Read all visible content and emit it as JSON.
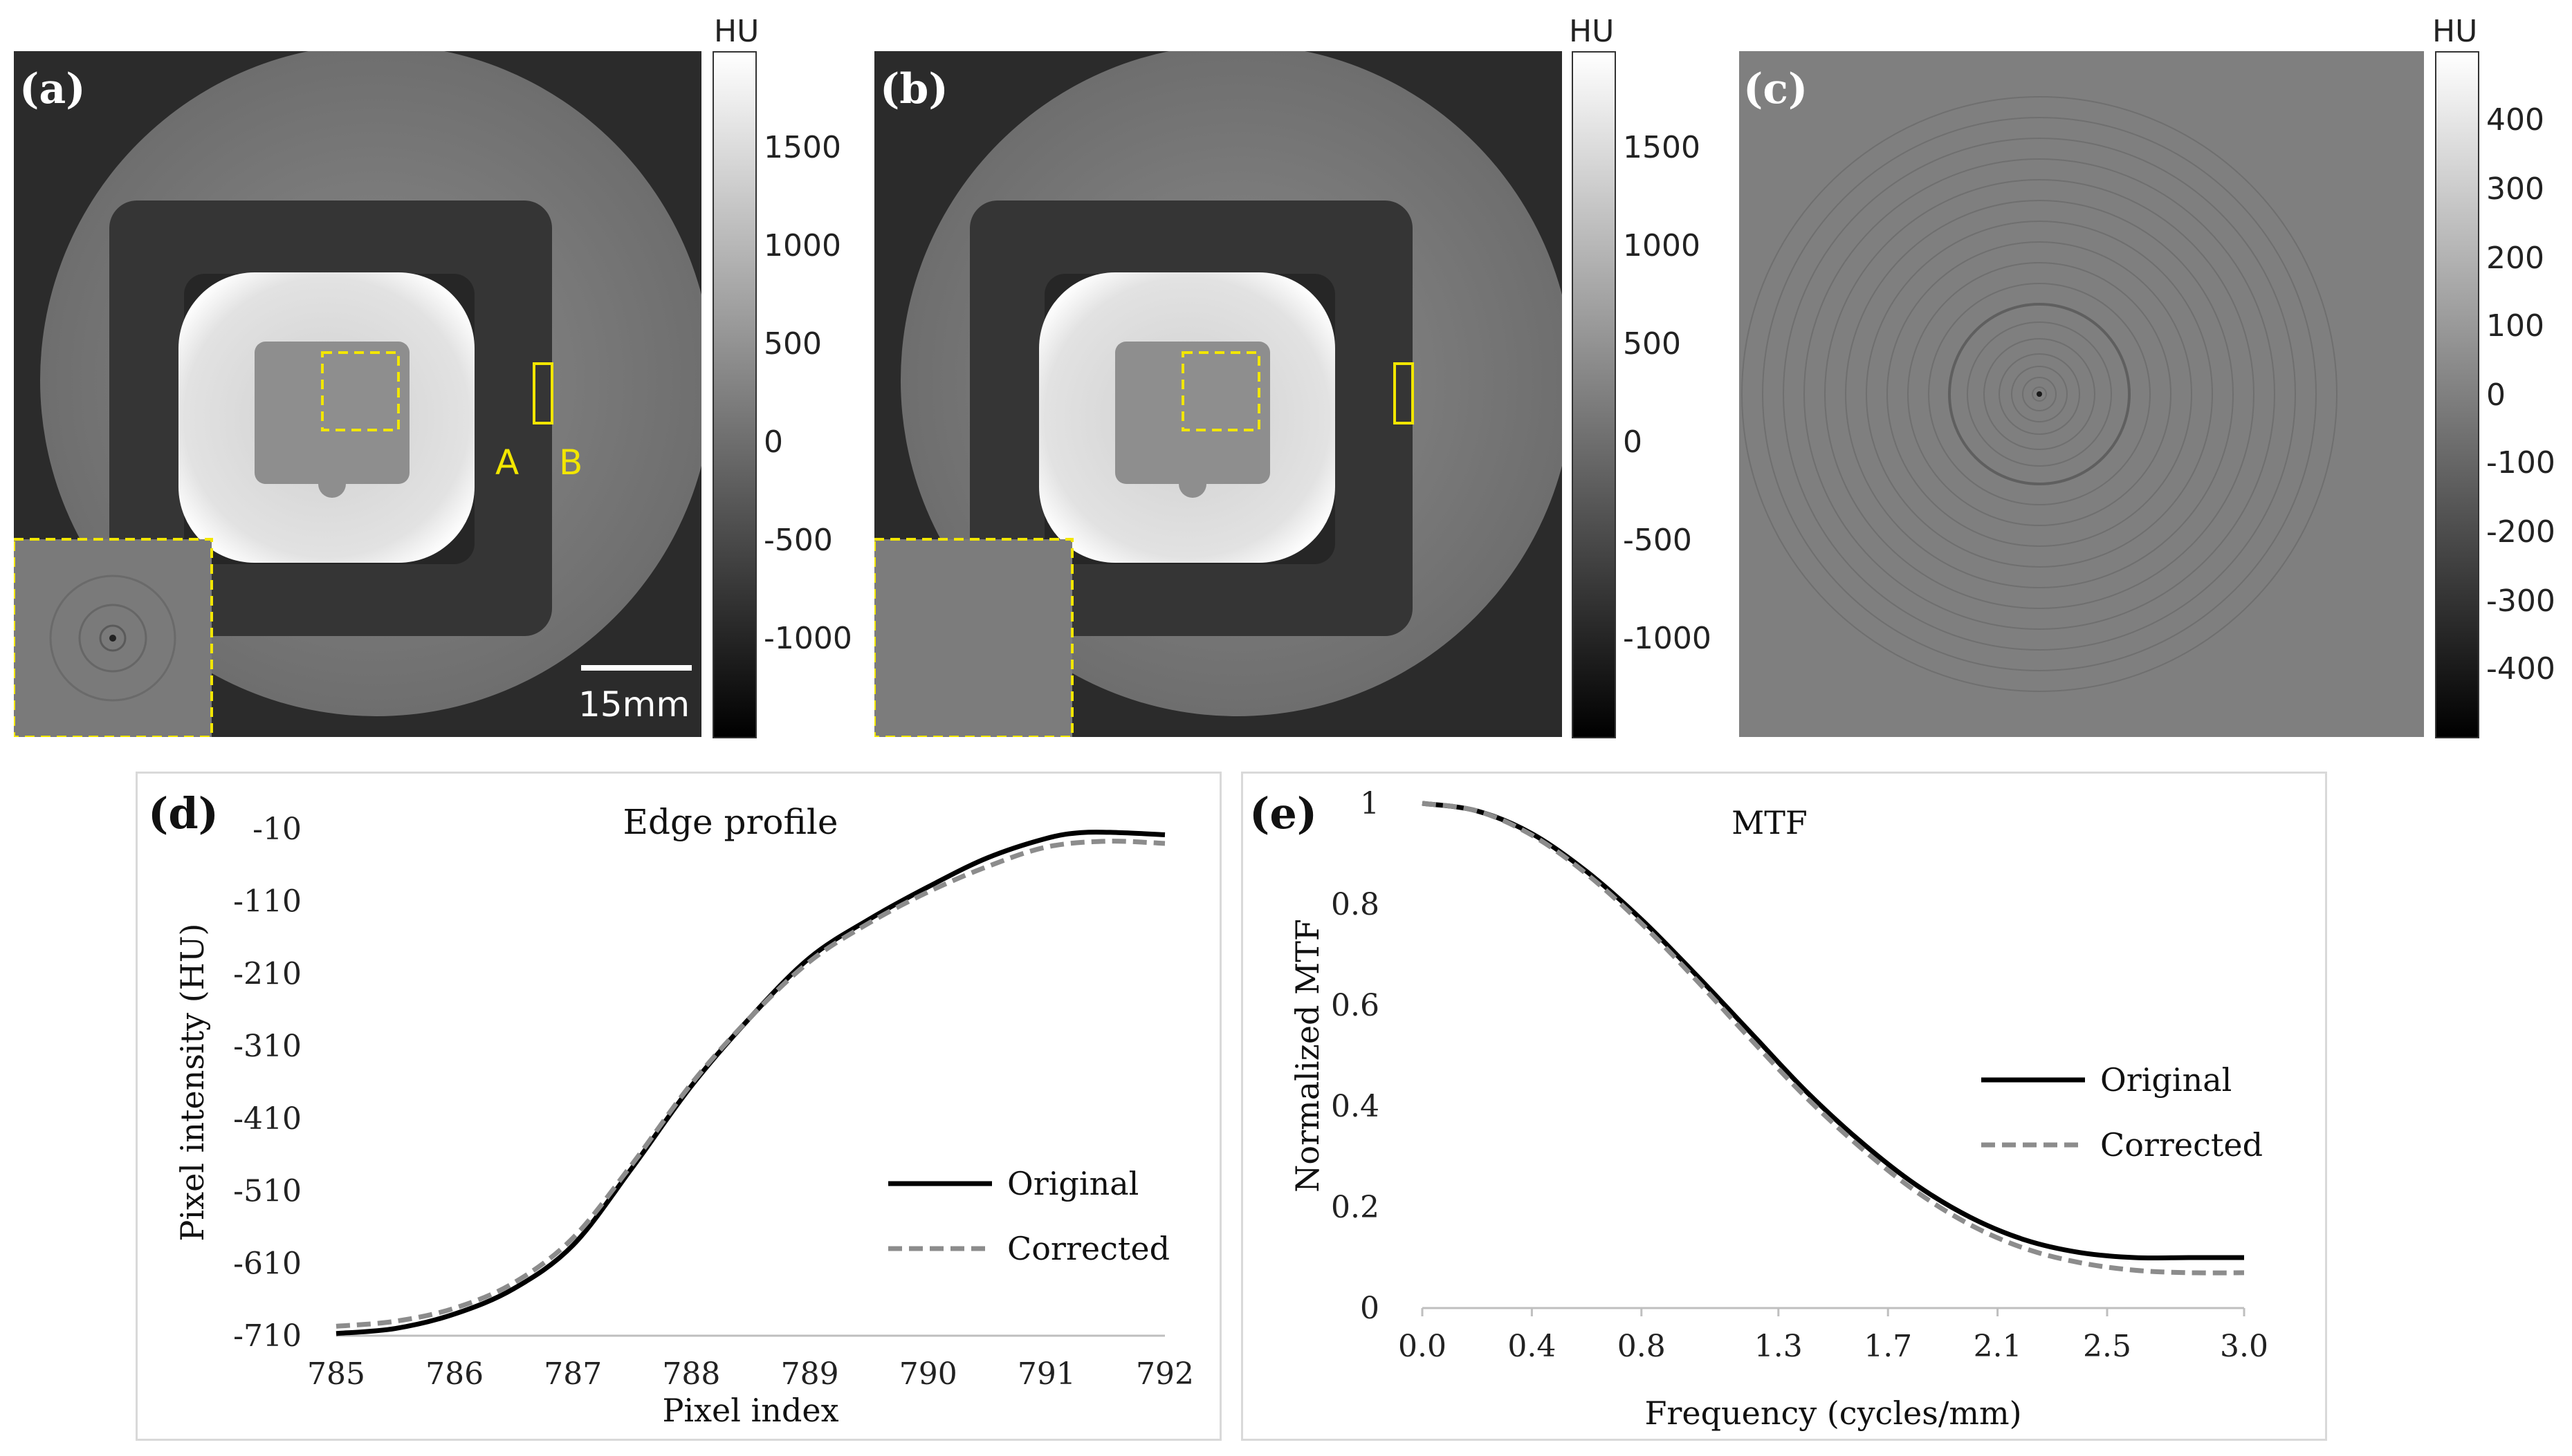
{
  "panels": {
    "a": {
      "letter": "(a)",
      "hu": "HU",
      "ticks": [
        "1500",
        "1000",
        "500",
        "0",
        "-500",
        "-1000"
      ],
      "marker_a": "A",
      "marker_b": "B",
      "scale_bar": "15mm"
    },
    "b": {
      "letter": "(b)",
      "hu": "HU",
      "ticks": [
        "1500",
        "1000",
        "500",
        "0",
        "-500",
        "-1000"
      ]
    },
    "c": {
      "letter": "(c)",
      "hu": "HU",
      "ticks": [
        "400",
        "300",
        "200",
        "100",
        "0",
        "-100",
        "-200",
        "-300",
        "-400"
      ]
    },
    "d": {
      "letter": "(d)"
    },
    "e": {
      "letter": "(e)"
    }
  },
  "colors": {
    "ct_bg": "#2b2b2b",
    "annotation": "#f2e600",
    "original": "#000000",
    "corrected": "#8c8c8c"
  },
  "chart_data": [
    {
      "type": "line",
      "title": "Edge profile",
      "xlabel": "Pixel index",
      "ylabel": "Pixel intensity (HU)",
      "xlim": [
        785,
        792
      ],
      "ylim": [
        -710,
        -10
      ],
      "xticks": [
        785,
        786,
        787,
        788,
        789,
        790,
        791,
        792
      ],
      "yticks": [
        -10,
        -110,
        -210,
        -310,
        -410,
        -510,
        -610,
        -710
      ],
      "legend": "center-right",
      "series": [
        {
          "name": "Original",
          "style": "solid",
          "x": [
            785,
            785.5,
            786,
            786.5,
            787,
            787.5,
            788,
            788.5,
            789,
            789.5,
            790,
            790.5,
            791,
            791.3,
            791.6,
            792
          ],
          "y": [
            -707,
            -700,
            -680,
            -645,
            -585,
            -478,
            -365,
            -270,
            -188,
            -135,
            -90,
            -50,
            -23,
            -15,
            -15,
            -18
          ]
        },
        {
          "name": "Corrected",
          "style": "dashed",
          "x": [
            785,
            785.5,
            786,
            786.5,
            787,
            787.5,
            788,
            788.5,
            789,
            789.5,
            790,
            790.5,
            791,
            791.5,
            792
          ],
          "y": [
            -697,
            -690,
            -672,
            -637,
            -575,
            -473,
            -362,
            -270,
            -193,
            -140,
            -97,
            -62,
            -35,
            -27,
            -30
          ]
        }
      ]
    },
    {
      "type": "line",
      "title": "MTF",
      "xlabel": "Frequency (cycles/mm)",
      "ylabel": "Normalized MTF",
      "xlim": [
        0.0,
        3.0
      ],
      "ylim": [
        0,
        1
      ],
      "xticks": [
        "0.0",
        "0.4",
        "0.8",
        "1.3",
        "1.7",
        "2.1",
        "2.5",
        "3.0"
      ],
      "yticks": [
        "0",
        "0.2",
        "0.4",
        "0.6",
        "0.8",
        "1"
      ],
      "legend": "center-right",
      "series": [
        {
          "name": "Original",
          "style": "solid",
          "x": [
            0.0,
            0.2,
            0.4,
            0.6,
            0.8,
            1.0,
            1.2,
            1.4,
            1.6,
            1.8,
            2.0,
            2.2,
            2.4,
            2.6,
            2.8,
            3.0
          ],
          "y": [
            1.0,
            0.985,
            0.94,
            0.865,
            0.77,
            0.66,
            0.545,
            0.43,
            0.33,
            0.245,
            0.18,
            0.135,
            0.11,
            0.1,
            0.1,
            0.1
          ]
        },
        {
          "name": "Corrected",
          "style": "dashed",
          "x": [
            0.0,
            0.2,
            0.4,
            0.6,
            0.8,
            1.0,
            1.2,
            1.4,
            1.6,
            1.8,
            2.0,
            2.2,
            2.4,
            2.6,
            2.8,
            3.0
          ],
          "y": [
            1.0,
            0.985,
            0.937,
            0.86,
            0.762,
            0.65,
            0.532,
            0.418,
            0.318,
            0.232,
            0.165,
            0.118,
            0.09,
            0.075,
            0.07,
            0.07
          ]
        }
      ]
    }
  ]
}
